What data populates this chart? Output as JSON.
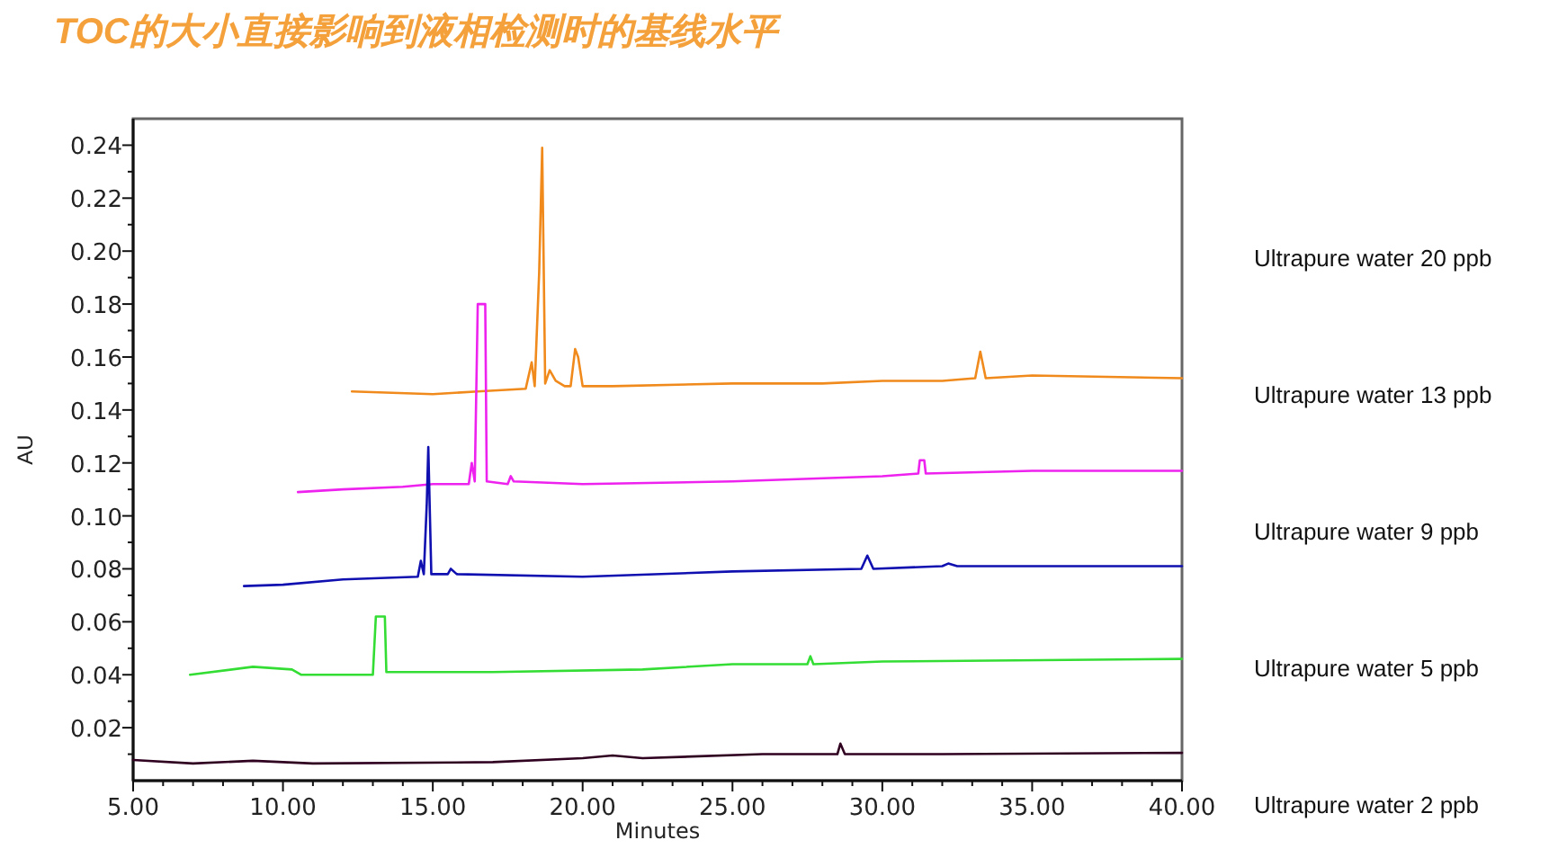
{
  "chart_data": {
    "type": "line",
    "title": "TOC的大小直接影响到液相检测时的基线水平",
    "xlabel": "Minutes",
    "ylabel": "AU",
    "xlim": [
      5,
      40
    ],
    "ylim": [
      0,
      0.25
    ],
    "xticks": [
      {
        "value": 5,
        "label": "5.00"
      },
      {
        "value": 6,
        "label": null
      },
      {
        "value": 7,
        "label": null
      },
      {
        "value": 8,
        "label": null
      },
      {
        "value": 9,
        "label": null
      },
      {
        "value": 10,
        "label": "10.00"
      },
      {
        "value": 11,
        "label": null
      },
      {
        "value": 12,
        "label": null
      },
      {
        "value": 13,
        "label": null
      },
      {
        "value": 14,
        "label": null
      },
      {
        "value": 15,
        "label": "15.00"
      },
      {
        "value": 16,
        "label": null
      },
      {
        "value": 17,
        "label": null
      },
      {
        "value": 18,
        "label": null
      },
      {
        "value": 19,
        "label": null
      },
      {
        "value": 20,
        "label": "20.00"
      },
      {
        "value": 21,
        "label": null
      },
      {
        "value": 22,
        "label": null
      },
      {
        "value": 23,
        "label": null
      },
      {
        "value": 24,
        "label": null
      },
      {
        "value": 25,
        "label": "25.00"
      },
      {
        "value": 26,
        "label": null
      },
      {
        "value": 27,
        "label": null
      },
      {
        "value": 28,
        "label": null
      },
      {
        "value": 29,
        "label": null
      },
      {
        "value": 30,
        "label": "30.00"
      },
      {
        "value": 31,
        "label": null
      },
      {
        "value": 32,
        "label": null
      },
      {
        "value": 33,
        "label": null
      },
      {
        "value": 34,
        "label": null
      },
      {
        "value": 35,
        "label": "35.00"
      },
      {
        "value": 36,
        "label": null
      },
      {
        "value": 37,
        "label": null
      },
      {
        "value": 38,
        "label": null
      },
      {
        "value": 39,
        "label": null
      },
      {
        "value": 40,
        "label": "40.00"
      }
    ],
    "yticks": [
      {
        "value": 0.01,
        "label": null
      },
      {
        "value": 0.02,
        "label": "0.02"
      },
      {
        "value": 0.03,
        "label": null
      },
      {
        "value": 0.04,
        "label": "0.04"
      },
      {
        "value": 0.05,
        "label": null
      },
      {
        "value": 0.06,
        "label": "0.06"
      },
      {
        "value": 0.07,
        "label": null
      },
      {
        "value": 0.08,
        "label": "0.08"
      },
      {
        "value": 0.09,
        "label": null
      },
      {
        "value": 0.1,
        "label": "0.10"
      },
      {
        "value": 0.11,
        "label": null
      },
      {
        "value": 0.12,
        "label": "0.12"
      },
      {
        "value": 0.13,
        "label": null
      },
      {
        "value": 0.14,
        "label": "0.14"
      },
      {
        "value": 0.15,
        "label": null
      },
      {
        "value": 0.16,
        "label": "0.16"
      },
      {
        "value": 0.17,
        "label": null
      },
      {
        "value": 0.18,
        "label": "0.18"
      },
      {
        "value": 0.19,
        "label": null
      },
      {
        "value": 0.2,
        "label": "0.20"
      },
      {
        "value": 0.21,
        "label": null
      },
      {
        "value": 0.22,
        "label": "0.22"
      },
      {
        "value": 0.23,
        "label": null
      },
      {
        "value": 0.24,
        "label": "0.24"
      }
    ],
    "grid": false,
    "legend": "right",
    "marker": "none",
    "line_style": "solid",
    "series": [
      {
        "name": "Ultrapure water 20 ppb",
        "color": "#f08a1c",
        "x": [
          12.3,
          15,
          16.5,
          18.1,
          18.3,
          18.4,
          18.55,
          18.65,
          18.75,
          18.9,
          19.1,
          19.4,
          19.6,
          19.75,
          19.85,
          20.0,
          21,
          25,
          28,
          30,
          32,
          33.1,
          33.27,
          33.45,
          35,
          40
        ],
        "values": [
          0.147,
          0.146,
          0.147,
          0.148,
          0.158,
          0.149,
          0.192,
          0.239,
          0.15,
          0.155,
          0.151,
          0.149,
          0.149,
          0.163,
          0.16,
          0.149,
          0.149,
          0.15,
          0.15,
          0.151,
          0.151,
          0.152,
          0.162,
          0.152,
          0.153,
          0.152
        ]
      },
      {
        "name": "Ultrapure water 13 ppb",
        "color": "#ee22ee",
        "x": [
          10.5,
          12,
          14,
          15,
          16.2,
          16.3,
          16.4,
          16.5,
          16.75,
          16.8,
          17.5,
          17.6,
          17.7,
          20,
          25,
          30,
          31.2,
          31.25,
          31.4,
          31.45,
          35,
          40
        ],
        "values": [
          0.109,
          0.11,
          0.111,
          0.112,
          0.112,
          0.12,
          0.113,
          0.18,
          0.18,
          0.113,
          0.112,
          0.115,
          0.113,
          0.112,
          0.113,
          0.115,
          0.116,
          0.121,
          0.121,
          0.116,
          0.117,
          0.117
        ]
      },
      {
        "name": "Ultrapure water 9 ppb",
        "color": "#1010b0",
        "x": [
          8.7,
          10,
          12,
          14.5,
          14.6,
          14.7,
          14.8,
          14.85,
          14.95,
          15.5,
          15.6,
          15.8,
          20,
          25,
          29.3,
          29.5,
          29.7,
          32,
          32.2,
          32.5,
          40
        ],
        "values": [
          0.0735,
          0.074,
          0.076,
          0.077,
          0.083,
          0.078,
          0.105,
          0.126,
          0.078,
          0.078,
          0.08,
          0.078,
          0.077,
          0.079,
          0.08,
          0.085,
          0.08,
          0.081,
          0.082,
          0.081,
          0.081
        ]
      },
      {
        "name": "Ultrapure water 5 ppb",
        "color": "#33dd33",
        "x": [
          6.9,
          9,
          10.3,
          10.6,
          13,
          13.1,
          13.4,
          13.45,
          17,
          22,
          25,
          27.5,
          27.6,
          27.7,
          30,
          40
        ],
        "values": [
          0.04,
          0.043,
          0.042,
          0.04,
          0.04,
          0.062,
          0.062,
          0.041,
          0.041,
          0.042,
          0.044,
          0.044,
          0.047,
          0.044,
          0.045,
          0.046
        ]
      },
      {
        "name": "Ultrapure water 2 ppb",
        "color": "#300020",
        "x": [
          5,
          7,
          9,
          11,
          17,
          20,
          21,
          22,
          26,
          28.5,
          28.6,
          28.75,
          32,
          40
        ],
        "values": [
          0.0078,
          0.0065,
          0.0075,
          0.0065,
          0.007,
          0.0085,
          0.0095,
          0.0085,
          0.01,
          0.01,
          0.014,
          0.01,
          0.01,
          0.0105
        ]
      }
    ]
  }
}
